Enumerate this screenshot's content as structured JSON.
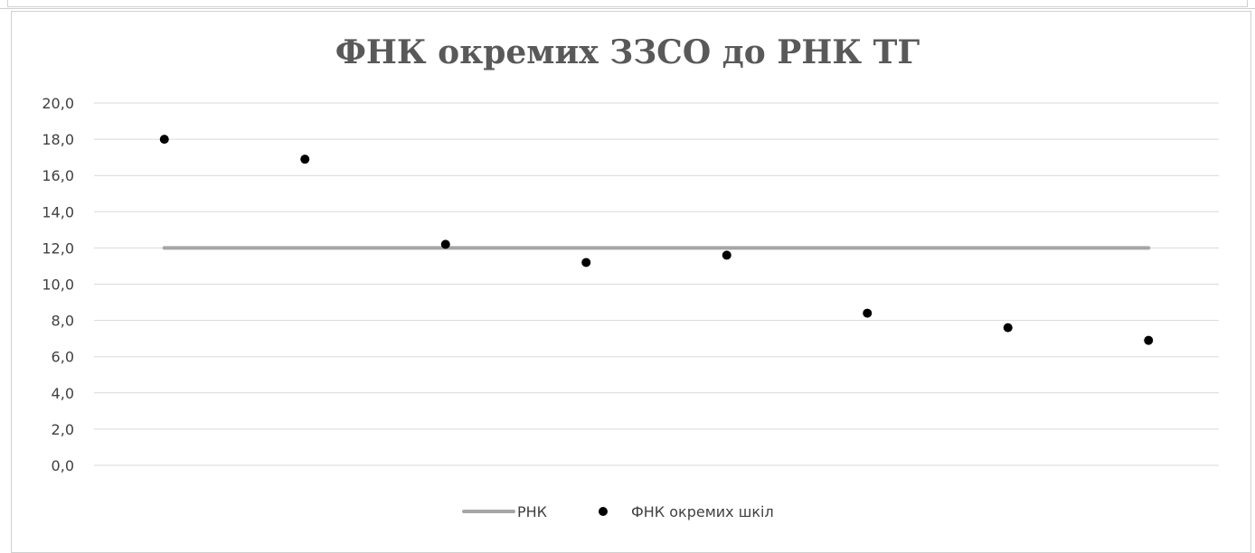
{
  "chart_data": {
    "type": "scatter",
    "title": "ФНК окремих ЗЗСО до РНК ТГ",
    "xlabel": "",
    "ylabel": "",
    "ylim": [
      0,
      20
    ],
    "yticks": [
      "0,0",
      "2,0",
      "4,0",
      "6,0",
      "8,0",
      "10,0",
      "12,0",
      "14,0",
      "16,0",
      "18,0",
      "20,0"
    ],
    "grid": true,
    "legend_position": "bottom",
    "x": [
      1,
      2,
      3,
      4,
      5,
      6,
      7,
      8
    ],
    "series": [
      {
        "name": "РНК",
        "kind": "line",
        "color": "#a6a6a6",
        "values": [
          12.0,
          12.0,
          12.0,
          12.0,
          12.0,
          12.0,
          12.0,
          12.0
        ]
      },
      {
        "name": "ФНК окремих шкіл",
        "kind": "scatter",
        "color": "#000000",
        "values": [
          18.0,
          16.9,
          12.2,
          11.2,
          11.6,
          8.4,
          7.6,
          6.9
        ]
      }
    ]
  }
}
